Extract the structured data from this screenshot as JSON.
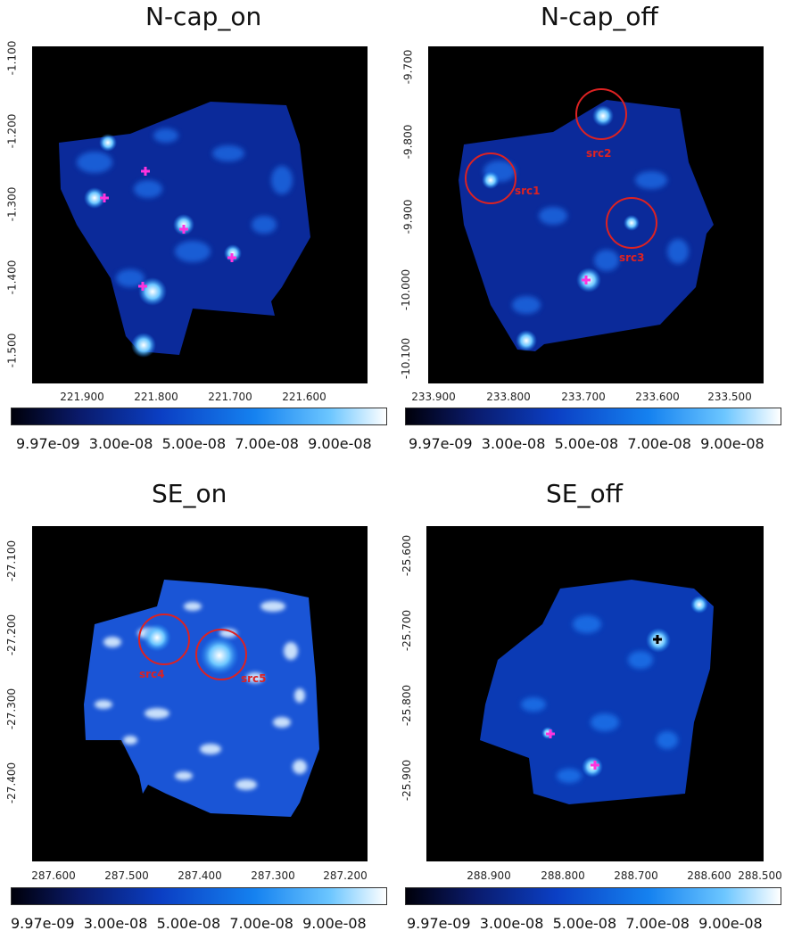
{
  "panels": [
    {
      "title": "N-cap_on",
      "yticks": [
        "-1.100",
        "-1.200",
        "-1.300",
        "-1.400",
        "-1.500"
      ],
      "xticks": [
        "221.900",
        "221.800",
        "221.700",
        "221.600"
      ],
      "markers": [],
      "sources": []
    },
    {
      "title": "N-cap_off",
      "yticks": [
        "-9.700",
        "-9.800",
        "-9.900",
        "-10.000",
        "-10.100"
      ],
      "xticks": [
        "233.900",
        "233.800",
        "233.700",
        "233.600",
        "233.500"
      ],
      "sources": [
        "src1",
        "src2",
        "src3"
      ]
    },
    {
      "title": "SE_on",
      "yticks": [
        "-27.100",
        "-27.200",
        "-27.300",
        "-27.400"
      ],
      "xticks": [
        "287.600",
        "287.500",
        "287.400",
        "287.300",
        "287.200"
      ],
      "sources": [
        "src4",
        "src5"
      ]
    },
    {
      "title": "SE_off",
      "yticks": [
        "-25.600",
        "-25.700",
        "-25.800",
        "-25.900"
      ],
      "xticks": [
        "288.900",
        "288.800",
        "288.700",
        "288.600",
        "288.500"
      ],
      "sources": []
    }
  ],
  "colorbar": {
    "ticks": [
      "9.97e-09",
      "3.00e-08",
      "5.00e-08",
      "7.00e-08",
      "9.00e-08"
    ],
    "colormap": [
      "#00000a",
      "#0a1a6a",
      "#0b3fc4",
      "#1582f0",
      "#6cc6ff",
      "#ffffff"
    ]
  },
  "colors": {
    "marker": "#ff33dd",
    "circle": "#dd2222",
    "marker_black": "#000000"
  }
}
